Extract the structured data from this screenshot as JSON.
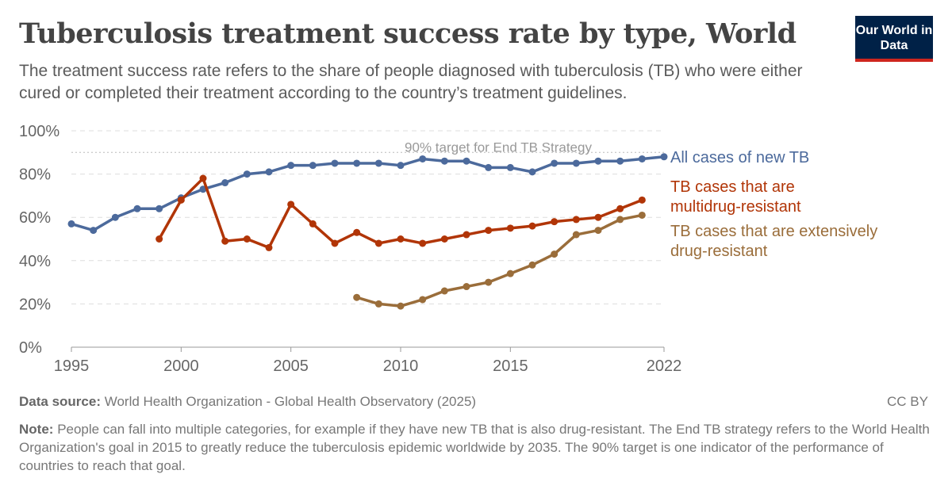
{
  "header": {
    "title": "Tuberculosis treatment success rate by type, World",
    "subtitle": "The treatment success rate refers to the share of people diagnosed with tuberculosis (TB) who were either cured or completed their treatment according to the country’s treatment guidelines.",
    "logo": "Our World in Data"
  },
  "footer": {
    "source_label": "Data source:",
    "source": "World Health Organization - Global Health Observatory (2025)",
    "license": "CC BY",
    "note_label": "Note:",
    "note": "People can fall into multiple categories, for example if they have new TB that is also drug-resistant. The End TB strategy refers to the World Health Organization's goal in 2015 to greatly reduce the tuberculosis epidemic worldwide by 2035. The 90% target is one indicator of the performance of countries to reach that goal."
  },
  "chart_data": {
    "type": "line",
    "xlim": [
      1995,
      2022
    ],
    "ylim": [
      0,
      100
    ],
    "xticks": [
      "1995",
      "2000",
      "2005",
      "2010",
      "2015",
      "2022"
    ],
    "yticks": [
      "0%",
      "20%",
      "40%",
      "60%",
      "80%",
      "100%"
    ],
    "grid": true,
    "legend": "right",
    "annotation": {
      "label": "90% target for End TB Strategy",
      "value": 90
    },
    "series": [
      {
        "name": "All cases of new TB",
        "color": "#4c6a9c",
        "x": [
          1995,
          1996,
          1997,
          1998,
          1999,
          2000,
          2001,
          2002,
          2003,
          2004,
          2005,
          2006,
          2007,
          2008,
          2009,
          2010,
          2011,
          2012,
          2013,
          2014,
          2015,
          2016,
          2017,
          2018,
          2019,
          2020,
          2021,
          2022
        ],
        "values": [
          57,
          54,
          60,
          64,
          64,
          69,
          73,
          76,
          80,
          81,
          84,
          84,
          85,
          85,
          85,
          84,
          87,
          86,
          86,
          83,
          83,
          81,
          85,
          85,
          86,
          86,
          87,
          88
        ]
      },
      {
        "name": "TB cases that are multidrug-resistant",
        "color": "#b13507",
        "x": [
          1999,
          2000,
          2001,
          2002,
          2003,
          2004,
          2005,
          2006,
          2007,
          2008,
          2009,
          2010,
          2011,
          2012,
          2013,
          2014,
          2015,
          2016,
          2017,
          2018,
          2019,
          2020,
          2021
        ],
        "values": [
          50,
          68,
          78,
          49,
          50,
          46,
          66,
          57,
          48,
          53,
          48,
          50,
          48,
          50,
          52,
          54,
          55,
          56,
          58,
          59,
          60,
          64,
          68
        ]
      },
      {
        "name": "TB cases that are extensively drug-resistant",
        "color": "#9a6d3a",
        "x": [
          2008,
          2009,
          2010,
          2011,
          2012,
          2013,
          2014,
          2015,
          2016,
          2017,
          2018,
          2019,
          2020,
          2021
        ],
        "values": [
          23,
          20,
          19,
          22,
          26,
          28,
          30,
          34,
          38,
          43,
          52,
          54,
          59,
          61
        ]
      }
    ]
  }
}
